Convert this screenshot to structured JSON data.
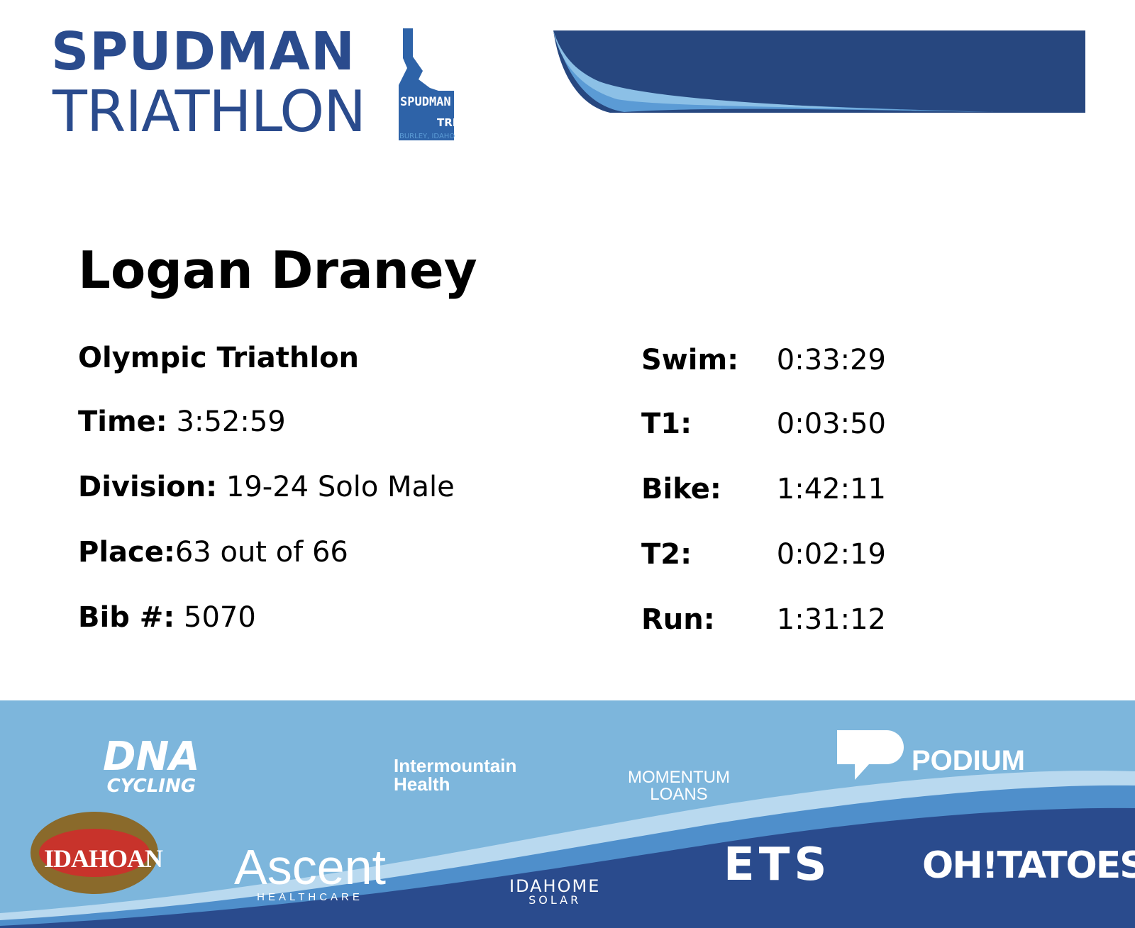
{
  "header": {
    "title_line1": "SPUDMAN",
    "title_line2": "TRIATHLON",
    "badge": {
      "top": "SPUDMAN",
      "tri": "TRI",
      "place": "BURLEY, IDAHO"
    }
  },
  "athlete": {
    "name": "Logan Draney",
    "event": "Olympic Triathlon",
    "fields": [
      {
        "label": "Time:",
        "value": "3:52:59"
      },
      {
        "label": "Division:",
        "value": "19-24 Solo Male"
      },
      {
        "label": "Place:",
        "value": "63 out of 66"
      },
      {
        "label": "Bib #:",
        "value": "5070"
      }
    ],
    "splits": [
      {
        "label": "Swim:",
        "value": "0:33:29"
      },
      {
        "label": "T1:",
        "value": "0:03:50"
      },
      {
        "label": "Bike:",
        "value": "1:42:11"
      },
      {
        "label": "T2:",
        "value": "0:02:19"
      },
      {
        "label": "Run:",
        "value": "1:31:12"
      }
    ]
  },
  "sponsors": [
    {
      "name": "DNA",
      "sub": "CYCLING"
    },
    {
      "name": "Intermountain",
      "sub": "Health"
    },
    {
      "name": "MOMENTUM",
      "sub": "LOANS"
    },
    {
      "name": "PODIUM"
    },
    {
      "name": "IDAHOAN"
    },
    {
      "name": "Ascent",
      "sub": "HEALTHCARE"
    },
    {
      "name": "IDAHOME",
      "sub": "SOLAR"
    },
    {
      "name": "ETS"
    },
    {
      "name": "OH!TATOES"
    }
  ]
}
